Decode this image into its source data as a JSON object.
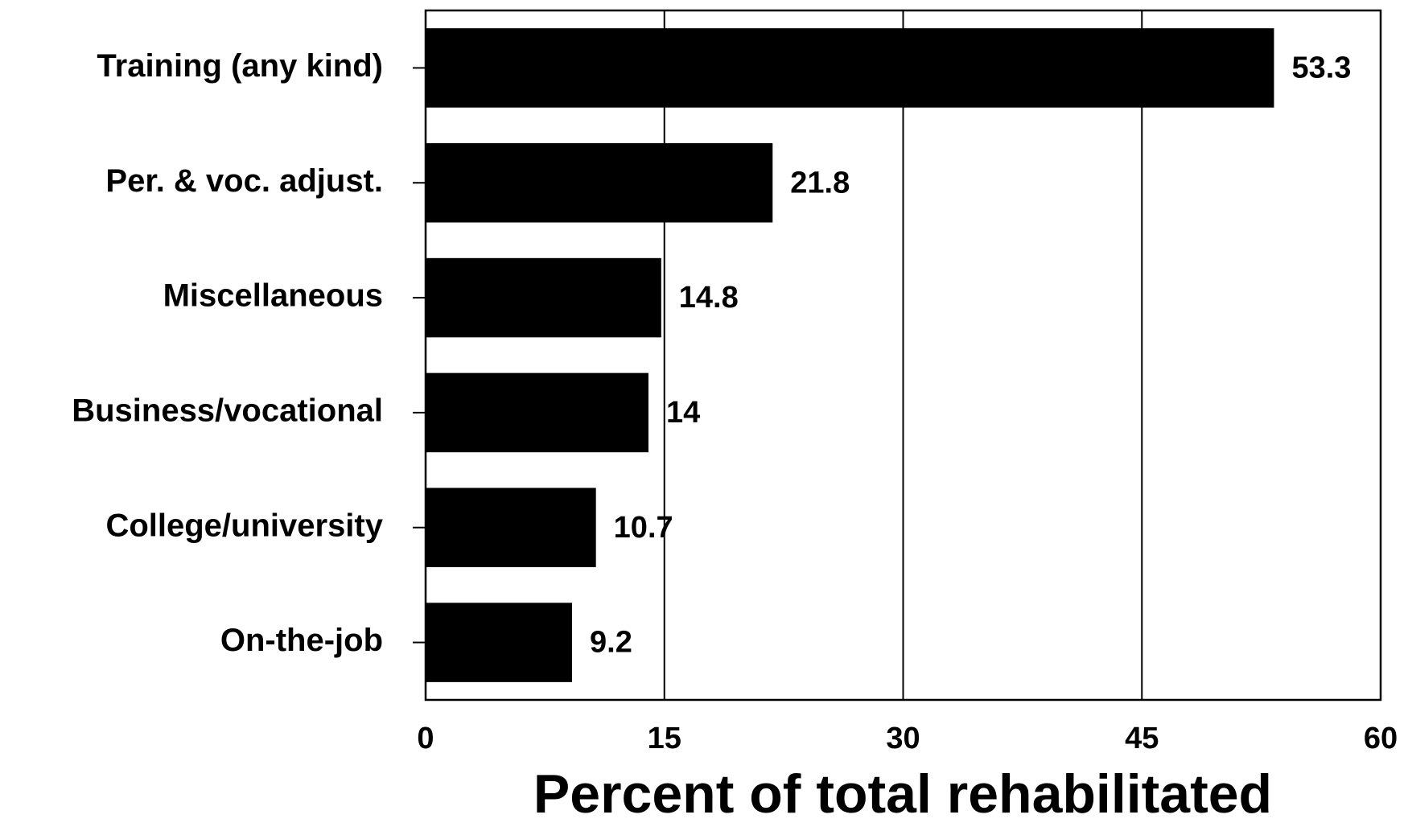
{
  "chart_data": {
    "type": "bar",
    "orientation": "horizontal",
    "x_label": "Percent of total rehabilitated",
    "categories": [
      "Training (any kind)",
      "Per. & voc. adjust.",
      "Miscellaneous",
      "Business/vocational",
      "College/university",
      "On-the-job"
    ],
    "values": [
      53.3,
      21.8,
      14.8,
      14,
      10.7,
      9.2
    ],
    "color": "#000000",
    "xlim": [
      0,
      60
    ],
    "xticks": [
      0,
      15,
      30,
      45,
      60
    ],
    "grid": true
  }
}
